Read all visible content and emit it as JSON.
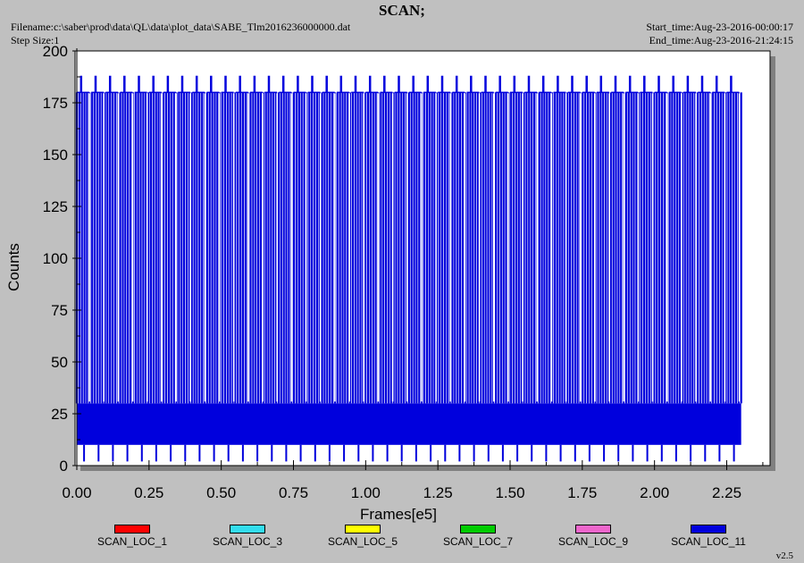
{
  "header": {
    "title": "SCAN;",
    "filename": "Filename:c:\\saber\\prod\\data\\QL\\data\\plot_data\\SABE_Tlm2016236000000.dat",
    "step_size": "Step Size:1",
    "start_time": "Start_time:Aug-23-2016-00:00:17",
    "end_time": "End_time:Aug-23-2016-21:24:15"
  },
  "version": "v2.5",
  "chart_data": {
    "type": "line",
    "title": "SCAN;",
    "xlabel": "Frames[e5]",
    "ylabel": "Counts",
    "xlim": [
      0,
      2.4
    ],
    "ylim": [
      0,
      200
    ],
    "x_ticks": [
      "0.00",
      "0.25",
      "0.50",
      "0.75",
      "1.00",
      "1.25",
      "1.50",
      "1.75",
      "2.00",
      "2.25"
    ],
    "y_ticks": [
      "0",
      "25",
      "50",
      "75",
      "100",
      "125",
      "150",
      "175",
      "200"
    ],
    "data_x_range": [
      0.0,
      2.3
    ],
    "grid": false,
    "legend_position": "bottom",
    "series": [
      {
        "name": "SCAN_LOC_1",
        "color": "#ff0000"
      },
      {
        "name": "SCAN_LOC_3",
        "color": "#33ddee"
      },
      {
        "name": "SCAN_LOC_5",
        "color": "#ffff00"
      },
      {
        "name": "SCAN_LOC_7",
        "color": "#00cc00"
      },
      {
        "name": "SCAN_LOC_9",
        "color": "#ee66cc"
      },
      {
        "name": "SCAN_LOC_11",
        "color": "#0000dd",
        "baseline_band": [
          10,
          30
        ],
        "upper_level": 180,
        "peak_level": 188,
        "scan_cycles": 46
      }
    ]
  }
}
